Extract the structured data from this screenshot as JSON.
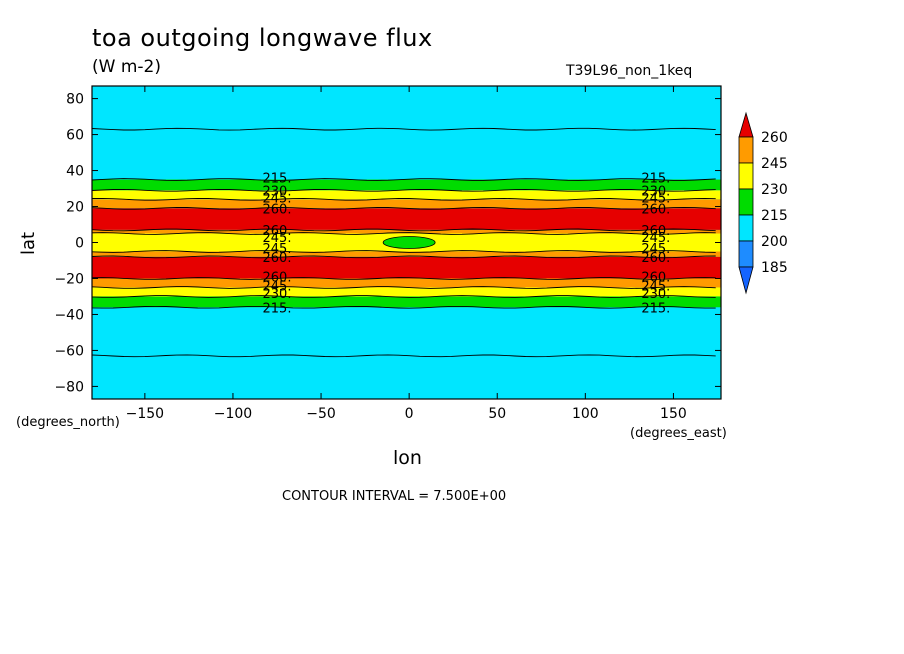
{
  "title": "toa outgoing longwave flux",
  "units": "(W m-2)",
  "run_id": "T39L96_non_1keq",
  "contour_interval": "CONTOUR INTERVAL = 7.500E+00",
  "colors": {
    "levels": [
      "#1e8cff",
      "#00e6ff",
      "#00dc00",
      "#ffff00",
      "#ff9b00",
      "#e60000"
    ],
    "contour_line": "#000000"
  },
  "chart_data": {
    "type": "heatmap",
    "title": "toa outgoing longwave flux",
    "units": "(W m-2)",
    "xlabel": "lon",
    "ylabel": "lat",
    "x_unit_label": "(degrees_east)",
    "y_unit_label": "(degrees_north)",
    "xlim": [
      -180,
      177
    ],
    "ylim": [
      -87,
      87
    ],
    "xticks": [
      -150,
      -100,
      -50,
      0,
      50,
      100,
      150
    ],
    "yticks": [
      -80,
      -60,
      -40,
      -20,
      0,
      20,
      40,
      60,
      80
    ],
    "colorbar": {
      "labels": [
        185,
        200,
        215,
        230,
        245,
        260
      ],
      "placement": "right",
      "extend": "both"
    },
    "zonal_band_edges": [
      {
        "value_range": "200-215",
        "lat_from": 63,
        "lat_to": 35
      },
      {
        "value_range": "215-230",
        "lat_from": 35,
        "lat_to": 29
      },
      {
        "value_range": "230-245",
        "lat_from": 29,
        "lat_to": 24
      },
      {
        "value_range": "245-260",
        "lat_from": 24,
        "lat_to": 19
      },
      {
        "value_range": ">260",
        "lat_from": 19,
        "lat_to": 7
      },
      {
        "value_range": "245-260",
        "lat_from": 7,
        "lat_to": 5
      },
      {
        "value_range": "230-245",
        "lat_from": 5,
        "lat_to": -5
      },
      {
        "value_range": "245-260",
        "lat_from": -5,
        "lat_to": -8
      },
      {
        "value_range": ">260",
        "lat_from": -8,
        "lat_to": -20
      },
      {
        "value_range": "245-260",
        "lat_from": -20,
        "lat_to": -25
      },
      {
        "value_range": "230-245",
        "lat_from": -25,
        "lat_to": -30
      },
      {
        "value_range": "215-230",
        "lat_from": -30,
        "lat_to": -36
      },
      {
        "value_range": "200-215",
        "lat_from": -36,
        "lat_to": -63
      }
    ],
    "local_minimum": {
      "lon": 0,
      "lat": 0,
      "value_range": "215-230"
    },
    "contour_labels": [
      {
        "text": "215.",
        "lon": -75,
        "lat": 36
      },
      {
        "text": "230.",
        "lon": -75,
        "lat": 29
      },
      {
        "text": "245.",
        "lon": -75,
        "lat": 25
      },
      {
        "text": "260.",
        "lon": -75,
        "lat": 19
      },
      {
        "text": "260.",
        "lon": -75,
        "lat": 7
      },
      {
        "text": "245.",
        "lon": -75,
        "lat": 3
      },
      {
        "text": "245.",
        "lon": -75,
        "lat": -3
      },
      {
        "text": "260.",
        "lon": -75,
        "lat": -8
      },
      {
        "text": "260.",
        "lon": -75,
        "lat": -19
      },
      {
        "text": "245.",
        "lon": -75,
        "lat": -24
      },
      {
        "text": "230.",
        "lon": -75,
        "lat": -28
      },
      {
        "text": "215.",
        "lon": -75,
        "lat": -36
      },
      {
        "text": "215.",
        "lon": 140,
        "lat": 36
      },
      {
        "text": "230.",
        "lon": 140,
        "lat": 29
      },
      {
        "text": "245.",
        "lon": 140,
        "lat": 25
      },
      {
        "text": "260.",
        "lon": 140,
        "lat": 19
      },
      {
        "text": "260.",
        "lon": 140,
        "lat": 7
      },
      {
        "text": "245.",
        "lon": 140,
        "lat": 3
      },
      {
        "text": "245.",
        "lon": 140,
        "lat": -3
      },
      {
        "text": "260.",
        "lon": 140,
        "lat": -8
      },
      {
        "text": "260.",
        "lon": 140,
        "lat": -19
      },
      {
        "text": "245.",
        "lon": 140,
        "lat": -24
      },
      {
        "text": "230.",
        "lon": 140,
        "lat": -28
      },
      {
        "text": "215.",
        "lon": 140,
        "lat": -36
      }
    ]
  }
}
